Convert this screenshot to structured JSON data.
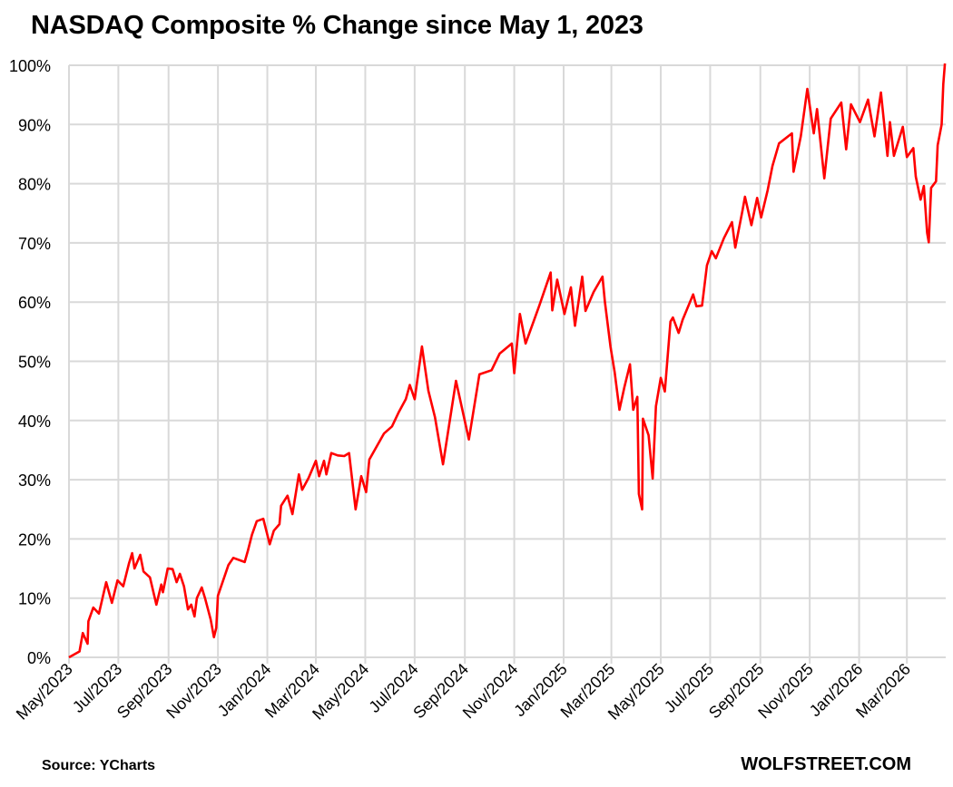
{
  "chart_data": {
    "type": "line",
    "title": "NASDAQ Composite % Change since May 1, 2023",
    "xlabel": "",
    "ylabel": "",
    "ylim": [
      0,
      100
    ],
    "xlim": [
      "2023-05-01",
      "2026-04-18"
    ],
    "yticks": [
      0,
      10,
      20,
      30,
      40,
      50,
      60,
      70,
      80,
      90,
      100
    ],
    "ytick_labels": [
      "0%",
      "10%",
      "20%",
      "30%",
      "40%",
      "50%",
      "60%",
      "70%",
      "80%",
      "90%",
      "100%"
    ],
    "xticks": [
      "2023-05-01",
      "2023-07-01",
      "2023-09-01",
      "2023-11-01",
      "2024-01-01",
      "2024-03-01",
      "2024-05-01",
      "2024-07-01",
      "2024-09-01",
      "2024-11-01",
      "2025-01-01",
      "2025-03-01",
      "2025-05-01",
      "2025-07-01",
      "2025-09-01",
      "2025-11-01",
      "2026-01-01",
      "2026-03-01"
    ],
    "xtick_labels": [
      "May/2023",
      "Jul/2023",
      "Sep/2023",
      "Nov/2023",
      "Jan/2024",
      "Mar/2024",
      "May/2024",
      "Jul/2024",
      "Sep/2024",
      "Nov/2024",
      "Jan/2025",
      "Mar/2025",
      "May/2025",
      "Jul/2025",
      "Sep/2025",
      "Nov/2025",
      "Jan/2026",
      "Mar/2026"
    ],
    "grid": true,
    "line_color": "#ff0000",
    "grid_color": "#d9d9d9",
    "series": [
      {
        "points": [
          [
            "2023-05-01",
            0
          ],
          [
            "2023-05-14",
            1
          ],
          [
            "2023-05-18",
            4.1
          ],
          [
            "2023-05-24",
            2.3
          ],
          [
            "2023-05-25",
            6.1
          ],
          [
            "2023-05-31",
            8.4
          ],
          [
            "2023-06-07",
            7.4
          ],
          [
            "2023-06-16",
            12.7
          ],
          [
            "2023-06-23",
            9.2
          ],
          [
            "2023-06-30",
            13
          ],
          [
            "2023-07-07",
            12
          ],
          [
            "2023-07-14",
            15.8
          ],
          [
            "2023-07-18",
            17.6
          ],
          [
            "2023-07-21",
            15
          ],
          [
            "2023-07-28",
            17.3
          ],
          [
            "2023-08-01",
            14.5
          ],
          [
            "2023-08-09",
            13.5
          ],
          [
            "2023-08-17",
            8.9
          ],
          [
            "2023-08-23",
            12.3
          ],
          [
            "2023-08-25",
            11
          ],
          [
            "2023-08-31",
            15
          ],
          [
            "2023-09-06",
            14.9
          ],
          [
            "2023-09-11",
            12.7
          ],
          [
            "2023-09-15",
            14.1
          ],
          [
            "2023-09-20",
            12
          ],
          [
            "2023-09-25",
            8.1
          ],
          [
            "2023-09-29",
            8.9
          ],
          [
            "2023-10-03",
            6.9
          ],
          [
            "2023-10-06",
            10
          ],
          [
            "2023-10-12",
            11.8
          ],
          [
            "2023-10-16",
            10
          ],
          [
            "2023-10-23",
            6.4
          ],
          [
            "2023-10-27",
            3.4
          ],
          [
            "2023-10-30",
            5
          ],
          [
            "2023-11-01",
            10.4
          ],
          [
            "2023-11-14",
            15.6
          ],
          [
            "2023-11-20",
            16.8
          ],
          [
            "2023-12-04",
            16.1
          ],
          [
            "2023-12-08",
            18
          ],
          [
            "2023-12-13",
            20.7
          ],
          [
            "2023-12-19",
            23
          ],
          [
            "2023-12-27",
            23.4
          ],
          [
            "2024-01-04",
            19.1
          ],
          [
            "2024-01-09",
            21.4
          ],
          [
            "2024-01-16",
            22.5
          ],
          [
            "2024-01-18",
            25.6
          ],
          [
            "2024-01-26",
            27.3
          ],
          [
            "2024-02-01",
            24.2
          ],
          [
            "2024-02-09",
            30.9
          ],
          [
            "2024-02-13",
            28.3
          ],
          [
            "2024-02-21",
            30.3
          ],
          [
            "2024-03-01",
            33.2
          ],
          [
            "2024-03-05",
            30.6
          ],
          [
            "2024-03-11",
            33.2
          ],
          [
            "2024-03-14",
            30.9
          ],
          [
            "2024-03-20",
            34.5
          ],
          [
            "2024-03-28",
            34.1
          ],
          [
            "2024-04-05",
            34
          ],
          [
            "2024-04-11",
            34.5
          ],
          [
            "2024-04-19",
            25
          ],
          [
            "2024-04-26",
            30.6
          ],
          [
            "2024-05-02",
            27.9
          ],
          [
            "2024-05-06",
            33.4
          ],
          [
            "2024-05-24",
            37.8
          ],
          [
            "2024-06-03",
            39
          ],
          [
            "2024-06-11",
            41.3
          ],
          [
            "2024-06-20",
            43.6
          ],
          [
            "2024-06-25",
            46
          ],
          [
            "2024-07-01",
            43.6
          ],
          [
            "2024-07-10",
            52.5
          ],
          [
            "2024-07-18",
            45
          ],
          [
            "2024-07-26",
            40.6
          ],
          [
            "2024-08-05",
            32.6
          ],
          [
            "2024-08-21",
            46.7
          ],
          [
            "2024-09-06",
            36.8
          ],
          [
            "2024-09-19",
            47.8
          ],
          [
            "2024-10-04",
            48.5
          ],
          [
            "2024-10-14",
            51.3
          ],
          [
            "2024-10-29",
            53
          ],
          [
            "2024-11-01",
            48
          ],
          [
            "2024-11-08",
            58
          ],
          [
            "2024-11-15",
            53
          ],
          [
            "2024-12-02",
            59.4
          ],
          [
            "2024-12-16",
            65
          ],
          [
            "2024-12-18",
            58.6
          ],
          [
            "2024-12-24",
            63.8
          ],
          [
            "2025-01-02",
            58
          ],
          [
            "2025-01-10",
            62.5
          ],
          [
            "2025-01-15",
            56
          ],
          [
            "2025-01-24",
            64.3
          ],
          [
            "2025-01-28",
            58.5
          ],
          [
            "2025-02-07",
            61.7
          ],
          [
            "2025-02-18",
            64.3
          ],
          [
            "2025-02-21",
            60
          ],
          [
            "2025-02-28",
            52.4
          ],
          [
            "2025-03-05",
            48.2
          ],
          [
            "2025-03-11",
            41.8
          ],
          [
            "2025-03-17",
            45.6
          ],
          [
            "2025-03-24",
            49.5
          ],
          [
            "2025-03-28",
            41.8
          ],
          [
            "2025-04-02",
            44
          ],
          [
            "2025-04-04",
            27.6
          ],
          [
            "2025-04-08",
            25
          ],
          [
            "2025-04-09",
            40.3
          ],
          [
            "2025-04-16",
            37.5
          ],
          [
            "2025-04-21",
            30.2
          ],
          [
            "2025-04-25",
            42.4
          ],
          [
            "2025-05-01",
            47.2
          ],
          [
            "2025-05-06",
            44.9
          ],
          [
            "2025-05-13",
            56.7
          ],
          [
            "2025-05-16",
            57.4
          ],
          [
            "2025-05-23",
            54.8
          ],
          [
            "2025-05-28",
            57
          ],
          [
            "2025-06-10",
            61.3
          ],
          [
            "2025-06-14",
            59.3
          ],
          [
            "2025-06-21",
            59.4
          ],
          [
            "2025-06-27",
            66.2
          ],
          [
            "2025-07-03",
            68.6
          ],
          [
            "2025-07-08",
            67.4
          ],
          [
            "2025-07-18",
            70.8
          ],
          [
            "2025-07-28",
            73.5
          ],
          [
            "2025-08-01",
            69.2
          ],
          [
            "2025-08-10",
            75.5
          ],
          [
            "2025-08-13",
            77.8
          ],
          [
            "2025-08-21",
            73
          ],
          [
            "2025-08-28",
            77.6
          ],
          [
            "2025-09-02",
            74.3
          ],
          [
            "2025-09-10",
            78.9
          ],
          [
            "2025-09-16",
            83
          ],
          [
            "2025-09-24",
            86.8
          ],
          [
            "2025-10-10",
            88.5
          ],
          [
            "2025-10-12",
            82
          ],
          [
            "2025-10-21",
            88
          ],
          [
            "2025-10-29",
            96
          ],
          [
            "2025-11-06",
            88.5
          ],
          [
            "2025-11-10",
            92.6
          ],
          [
            "2025-11-19",
            80.9
          ],
          [
            "2025-11-27",
            91
          ],
          [
            "2025-12-10",
            93.7
          ],
          [
            "2025-12-16",
            85.8
          ],
          [
            "2025-12-22",
            93.4
          ],
          [
            "2026-01-02",
            90.4
          ],
          [
            "2026-01-12",
            94.2
          ],
          [
            "2026-01-20",
            88
          ],
          [
            "2026-01-28",
            95.4
          ],
          [
            "2026-02-05",
            84.7
          ],
          [
            "2026-02-08",
            90.4
          ],
          [
            "2026-02-13",
            84.7
          ],
          [
            "2026-02-24",
            89.6
          ],
          [
            "2026-03-01",
            84.5
          ],
          [
            "2026-03-09",
            86
          ],
          [
            "2026-03-12",
            81.2
          ],
          [
            "2026-03-18",
            77.3
          ],
          [
            "2026-03-22",
            79.6
          ],
          [
            "2026-03-26",
            71.7
          ],
          [
            "2026-03-28",
            70.1
          ],
          [
            "2026-03-31",
            79.3
          ],
          [
            "2026-04-06",
            80.4
          ],
          [
            "2026-04-08",
            86.5
          ],
          [
            "2026-04-13",
            90
          ],
          [
            "2026-04-15",
            96.8
          ],
          [
            "2026-04-17",
            100.3
          ]
        ]
      }
    ]
  },
  "footer": {
    "source": "Source: YCharts",
    "brand": "WOLFSTREET.COM"
  }
}
